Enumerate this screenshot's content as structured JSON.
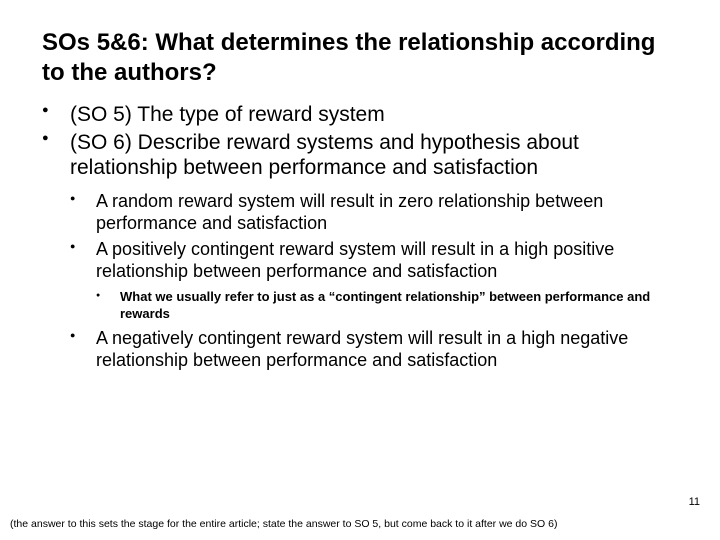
{
  "title": "SOs 5&6: What determines the relationship according to the authors?",
  "bullets": {
    "l1a": "(SO 5) The type of reward system",
    "l1b": "(SO 6) Describe reward systems and hypothesis about relationship between performance and satisfaction",
    "l2a": "A random reward system will result in zero relationship between performance and satisfaction",
    "l2b": "A positively contingent reward system will result in a high positive relationship between performance and satisfaction",
    "l3a": "What we usually refer to just as a “contingent relationship” between performance and rewards",
    "l2c": "A negatively contingent reward system will result in a high negative relationship between performance and satisfaction"
  },
  "pageNumber": "11",
  "footnote": "(the answer to this sets the stage for the entire article; state the answer to SO 5, but come back to it after we do SO 6)"
}
